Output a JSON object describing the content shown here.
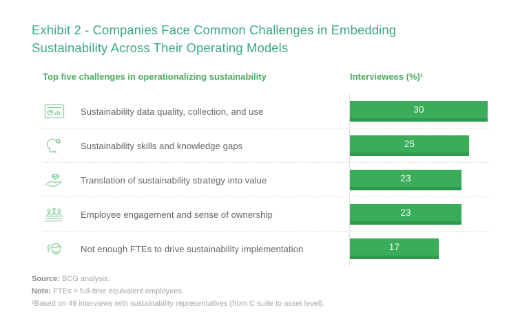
{
  "exhibit": {
    "title": "Exhibit 2 - Companies Face Common Challenges in Embedding Sustainability Across Their Operating Models"
  },
  "table": {
    "left_header": "Top five challenges in operationalizing sustainability",
    "right_header": "Interviewees (%)¹"
  },
  "chart_data": {
    "type": "bar",
    "orientation": "horizontal",
    "title": "Top five challenges in operationalizing sustainability",
    "value_axis_label": "Interviewees (%)¹",
    "categories": [
      "Sustainability data quality, collection, and use",
      "Sustainability skills and knowledge gaps",
      "Translation of sustainability strategy into value",
      "Employee engagement and sense of ownership",
      "Not enough FTEs to drive sustainability implementation"
    ],
    "values": [
      30,
      25,
      23,
      23,
      17
    ],
    "xlim": [
      0,
      30
    ],
    "grid": "dashed row separators",
    "legend": "none",
    "icons": [
      "dashboard-chart-icon",
      "head-gear-icon",
      "hand-diamond-icon",
      "rowing-team-icon",
      "two-people-icon"
    ]
  },
  "footer": {
    "source_label": "Source:",
    "source_text": " BCG analysis.",
    "note_label": "Note:",
    "note_text": " FTEs = full-time equivalent employees.",
    "footnote": "¹Based on 48 interviews with sustainability representatives (from C-suite to asset level)."
  },
  "colors": {
    "title_teal": "#3ba78b",
    "header_green": "#4aab5e",
    "bar_green": "#3aad5b",
    "bar_green_dark": "#2f9a4e",
    "label_gray": "#5f6369",
    "footer_gray": "#a6a6a6",
    "icon_green": "#8ccf9f"
  }
}
